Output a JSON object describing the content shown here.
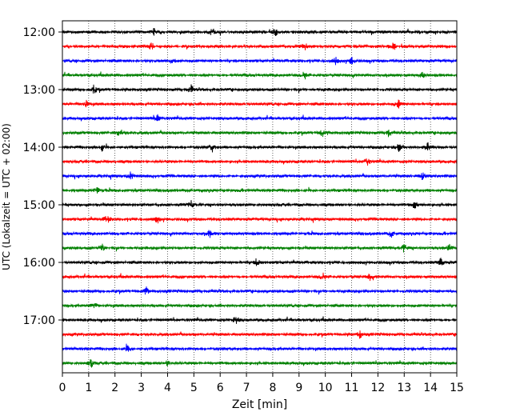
{
  "chart_data": {
    "type": "line",
    "title": "",
    "xlabel": "Zeit  [min]",
    "ylabel": "UTC (Lokalzeit = UTC + 02:00)",
    "xlim": [
      0,
      15
    ],
    "x_ticks": [
      0,
      1,
      2,
      3,
      4,
      5,
      6,
      7,
      8,
      9,
      10,
      11,
      12,
      13,
      14,
      15
    ],
    "x_tick_labels": [
      "0",
      "1",
      "2",
      "3",
      "4",
      "5",
      "6",
      "7",
      "8",
      "9",
      "10",
      "11",
      "12",
      "13",
      "14",
      "15"
    ],
    "y_tick_labels": [
      "12:00",
      "13:00",
      "14:00",
      "15:00",
      "16:00",
      "17:00"
    ],
    "y_tick_rows": [
      0,
      4,
      8,
      12,
      16,
      20
    ],
    "grid": "vertical dotted at each minute",
    "row_count": 24,
    "row_minutes": 15,
    "color_cycle": [
      "#000000",
      "#ff0000",
      "#0000ff",
      "#008000"
    ],
    "series": [
      {
        "start": "12:00",
        "color": "#000000",
        "events": [
          3.5,
          5.7,
          8.1
        ]
      },
      {
        "start": "12:15",
        "color": "#ff0000",
        "events": [
          3.4,
          9.2,
          12.6
        ]
      },
      {
        "start": "12:30",
        "color": "#0000ff",
        "events": [
          4.2,
          10.4,
          11.0
        ]
      },
      {
        "start": "12:45",
        "color": "#008000",
        "events": [
          9.2,
          13.7
        ]
      },
      {
        "start": "13:00",
        "color": "#000000",
        "events": [
          1.2,
          4.9
        ]
      },
      {
        "start": "13:15",
        "color": "#ff0000",
        "events": [
          0.9,
          12.8
        ]
      },
      {
        "start": "13:30",
        "color": "#0000ff",
        "events": [
          3.6
        ]
      },
      {
        "start": "13:45",
        "color": "#008000",
        "events": [
          2.2,
          9.9,
          12.4
        ]
      },
      {
        "start": "14:00",
        "color": "#000000",
        "events": [
          1.5,
          5.7,
          12.8,
          13.9
        ]
      },
      {
        "start": "14:15",
        "color": "#ff0000",
        "events": [
          11.6
        ]
      },
      {
        "start": "14:30",
        "color": "#0000ff",
        "events": [
          2.6,
          13.7
        ]
      },
      {
        "start": "14:45",
        "color": "#008000",
        "events": [
          1.3
        ]
      },
      {
        "start": "15:00",
        "color": "#000000",
        "events": [
          4.9,
          13.4
        ]
      },
      {
        "start": "15:15",
        "color": "#ff0000",
        "events": [
          1.7,
          3.6
        ]
      },
      {
        "start": "15:30",
        "color": "#0000ff",
        "events": [
          5.6,
          12.5
        ]
      },
      {
        "start": "15:45",
        "color": "#008000",
        "events": [
          1.5,
          13.0,
          14.7
        ]
      },
      {
        "start": "16:00",
        "color": "#000000",
        "events": [
          7.4,
          14.4
        ]
      },
      {
        "start": "16:15",
        "color": "#ff0000",
        "events": [
          9.9,
          11.7
        ]
      },
      {
        "start": "16:30",
        "color": "#0000ff",
        "events": [
          3.2
        ]
      },
      {
        "start": "16:45",
        "color": "#008000",
        "events": [
          1.2
        ]
      },
      {
        "start": "17:00",
        "color": "#000000",
        "events": [
          6.6
        ]
      },
      {
        "start": "17:15",
        "color": "#ff0000",
        "events": [
          11.3
        ]
      },
      {
        "start": "17:30",
        "color": "#0000ff",
        "events": [
          2.5
        ]
      },
      {
        "start": "17:45",
        "color": "#008000",
        "events": [
          1.1,
          4.0
        ]
      }
    ]
  }
}
